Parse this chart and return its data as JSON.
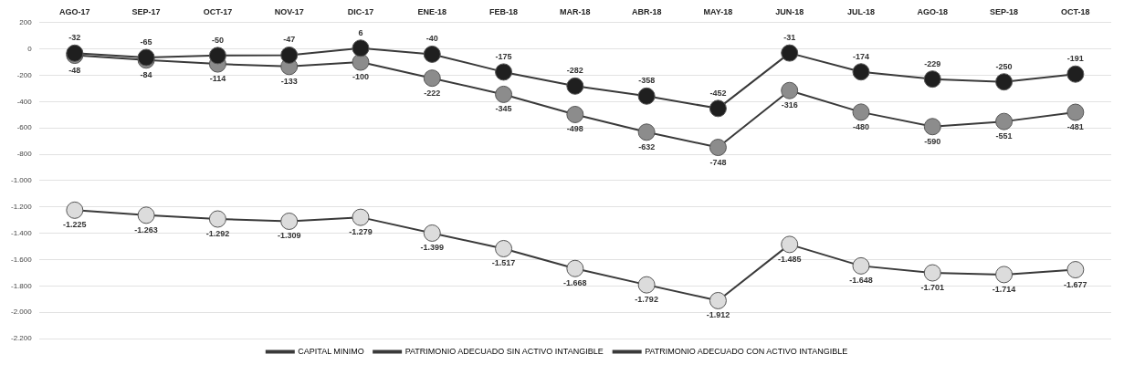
{
  "chart_data": {
    "type": "line",
    "categories": [
      "AGO-17",
      "SEP-17",
      "OCT-17",
      "NOV-17",
      "DIC-17",
      "ENE-18",
      "FEB-18",
      "MAR-18",
      "ABR-18",
      "MAY-18",
      "JUN-18",
      "JUL-18",
      "AGO-18",
      "SEP-18",
      "OCT-18"
    ],
    "series": [
      {
        "name": "CAPITAL MINIMO",
        "color": "#1f1f1f",
        "values": [
          -32,
          -65,
          -50,
          -47,
          6,
          -40,
          -175,
          -282,
          -358,
          -452,
          -31,
          -174,
          -229,
          -250,
          -191
        ],
        "value_labels": [
          "-32",
          "-65",
          "-50",
          "-47",
          "6",
          "-40",
          "-175",
          "-282",
          "-358",
          "-452",
          "-31",
          "-174",
          "-229",
          "-250",
          "-191"
        ]
      },
      {
        "name": "PATRIMONIO ADECUADO SIN ACTIVO INTANGIBLE",
        "color": "#8c8c8c",
        "values": [
          -48,
          -84,
          -114,
          -133,
          -100,
          -222,
          -345,
          -498,
          -632,
          -748,
          -316,
          -480,
          -590,
          -551,
          -481
        ],
        "value_labels": [
          "-48",
          "-84",
          "-114",
          "-133",
          "-100",
          "-222",
          "-345",
          "-498",
          "-632",
          "-748",
          "-316",
          "-480",
          "-590",
          "-551",
          "-481"
        ]
      },
      {
        "name": "PATRIMONIO ADECUADO CON ACTIVO INTANGIBLE",
        "color": "#dcdcdc",
        "values": [
          -1225,
          -1263,
          -1292,
          -1309,
          -1279,
          -1399,
          -1517,
          -1668,
          -1792,
          -1912,
          -1485,
          -1648,
          -1701,
          -1714,
          -1677
        ],
        "value_labels": [
          "-1.225",
          "-1.263",
          "-1.292",
          "-1.309",
          "-1.279",
          "-1.399",
          "-1.517",
          "-1.668",
          "-1.792",
          "-1.912",
          "-1.485",
          "-1.648",
          "-1.701",
          "-1.714",
          "-1.677"
        ]
      }
    ],
    "ylim": [
      -2200,
      200
    ],
    "yticks": [
      200,
      0,
      -200,
      -400,
      -600,
      -800,
      {
        "value": -1000,
        "label": "-1.000"
      },
      {
        "value": -1200,
        "label": "-1.200"
      },
      {
        "value": -1400,
        "label": "-1.400"
      },
      {
        "value": -1600,
        "label": "-1.600"
      },
      {
        "value": -1800,
        "label": "-1.800"
      },
      {
        "value": -2000,
        "label": "-2.000"
      },
      {
        "value": -2200,
        "label": "-2.200"
      }
    ],
    "grid": "y",
    "legend": "bottom",
    "marker": "circle",
    "line_style": "solid"
  }
}
